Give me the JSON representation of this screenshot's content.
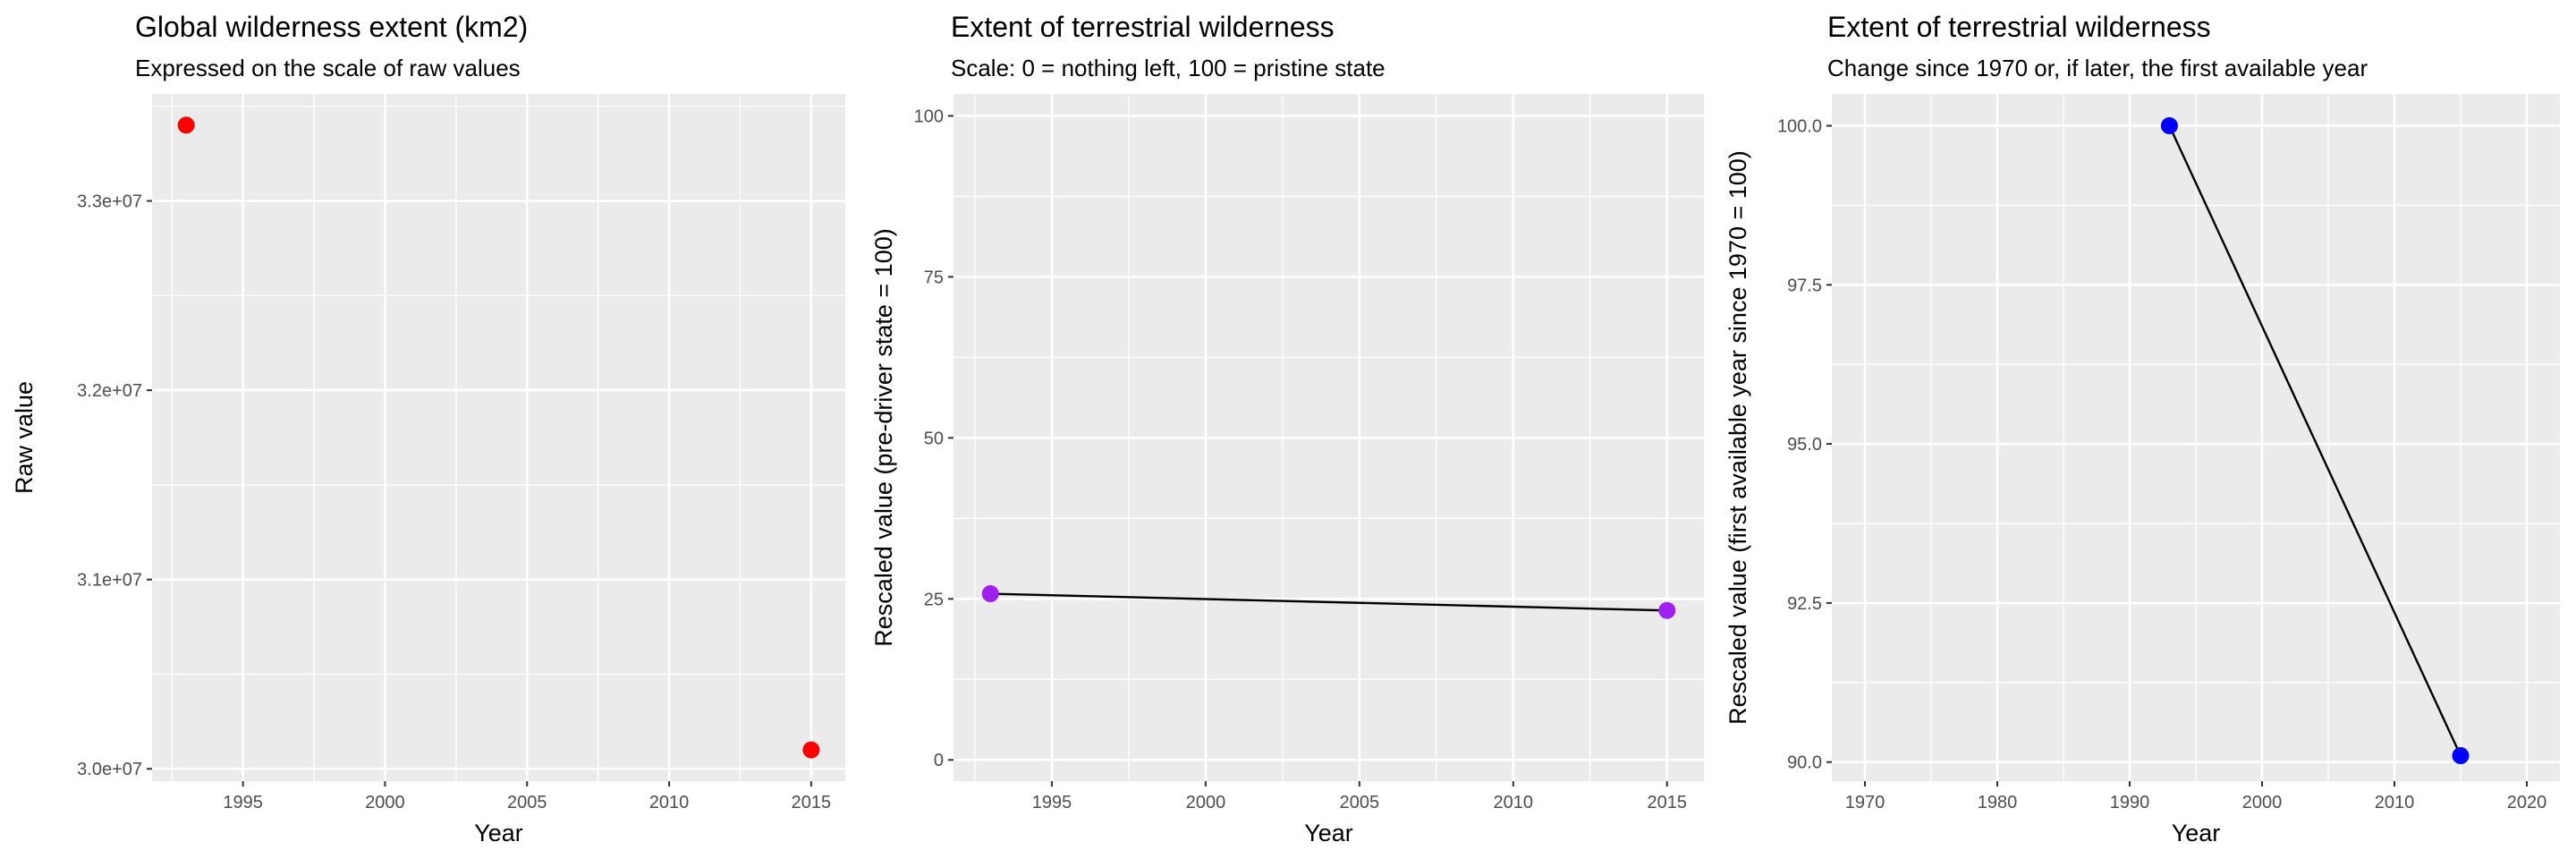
{
  "chart_data": [
    {
      "type": "scatter",
      "title": "Global wilderness extent (km2)",
      "subtitle": "Expressed on the scale of raw values",
      "xlabel": "Year",
      "ylabel": "Raw value",
      "x": [
        1993,
        2015
      ],
      "y": [
        33400000,
        30100000
      ],
      "xlim": [
        1991.8,
        2016.2
      ],
      "ylim": [
        29935000,
        33565000
      ],
      "x_major_ticks": [
        1995,
        2000,
        2005,
        2010,
        2015
      ],
      "x_tick_labels": [
        "1995",
        "2000",
        "2005",
        "2010",
        "2015"
      ],
      "y_major_ticks": [
        30000000,
        31000000,
        32000000,
        33000000
      ],
      "y_tick_labels": [
        "3.0e+07",
        "3.1e+07",
        "3.2e+07",
        "3.3e+07"
      ],
      "connect_line": false,
      "point_color": "#ff0000",
      "panel_bg": "#ebebeb",
      "grid": true
    },
    {
      "type": "line",
      "title": "Extent of terrestrial wilderness",
      "subtitle": "Scale: 0 = nothing left, 100 = pristine state",
      "xlabel": "Year",
      "ylabel": "Rescaled value (pre-driver state = 100)",
      "x": [
        1993,
        2015
      ],
      "y": [
        25.8,
        23.2
      ],
      "xlim": [
        1991.8,
        2016.2
      ],
      "ylim": [
        -3.3,
        103.4
      ],
      "x_major_ticks": [
        1995,
        2000,
        2005,
        2010,
        2015
      ],
      "x_tick_labels": [
        "1995",
        "2000",
        "2005",
        "2010",
        "2015"
      ],
      "y_major_ticks": [
        0,
        25,
        50,
        75,
        100
      ],
      "y_tick_labels": [
        "0",
        "25",
        "50",
        "75",
        "100"
      ],
      "connect_line": true,
      "point_color": "#a020f0",
      "line_color": "#000000",
      "panel_bg": "#ebebeb",
      "grid": true
    },
    {
      "type": "line",
      "title": "Extent of terrestrial wilderness",
      "subtitle": "Change since 1970 or, if later, the first available year",
      "xlabel": "Year",
      "ylabel": "Rescaled value (first available year since 1970 = 100)",
      "x": [
        1993,
        2015
      ],
      "y": [
        100.0,
        90.1
      ],
      "xlim": [
        1967.5,
        2022.5
      ],
      "ylim": [
        89.7,
        100.5
      ],
      "x_major_ticks": [
        1970,
        1980,
        1990,
        2000,
        2010,
        2020
      ],
      "x_tick_labels": [
        "1970",
        "1980",
        "1990",
        "2000",
        "2010",
        "2020"
      ],
      "y_major_ticks": [
        90,
        92.5,
        95,
        97.5,
        100
      ],
      "y_tick_labels": [
        "90.0",
        "92.5",
        "95.0",
        "97.5",
        "100.0"
      ],
      "connect_line": true,
      "point_color": "#0000ff",
      "line_color": "#000000",
      "panel_bg": "#ebebeb",
      "grid": true
    }
  ]
}
